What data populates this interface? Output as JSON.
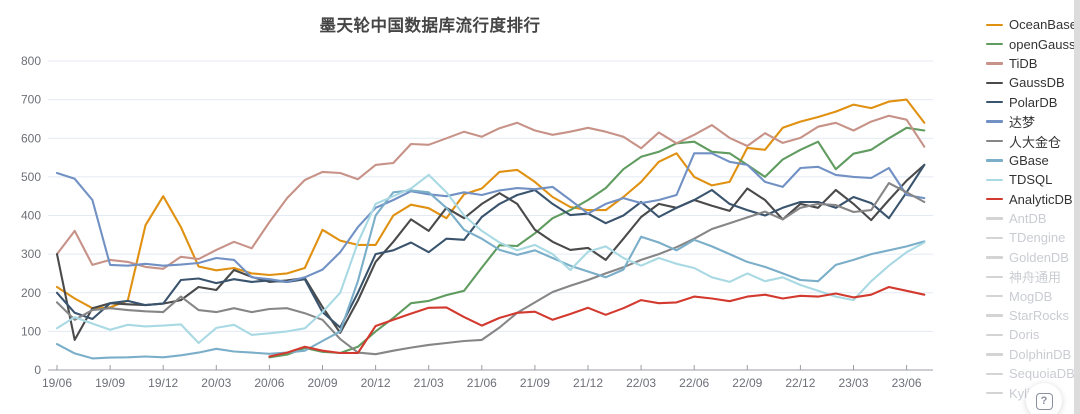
{
  "title": "墨天轮中国数据库流行度排行",
  "help": {
    "glyph": "?"
  },
  "colors": {
    "grid": "#E4EAF4",
    "axis_line": "#999CA3",
    "axis_text": "#6E7079",
    "title_text": "#454545",
    "legend_active_text": "#333333",
    "legend_inactive_text": "#C9CCD2",
    "legend_inactive_swatch": "#D4D4D4"
  },
  "legend": {
    "position": "right",
    "inactive_swatch": "#D4D4D4",
    "items": [
      {
        "label": "OceanBase",
        "color": "#E09112",
        "active": true
      },
      {
        "label": "openGauss",
        "color": "#609B60",
        "active": true
      },
      {
        "label": "TiDB",
        "color": "#C79287",
        "active": true
      },
      {
        "label": "GaussDB",
        "color": "#4A4A4A",
        "active": true
      },
      {
        "label": "PolarDB",
        "color": "#3A546E",
        "active": true
      },
      {
        "label": "达梦",
        "color": "#7191C4",
        "active": true
      },
      {
        "label": "人大金仓",
        "color": "#868686",
        "active": true
      },
      {
        "label": "GBase",
        "color": "#7AAEC9",
        "active": true
      },
      {
        "label": "TDSQL",
        "color": "#A9D9E3",
        "active": true
      },
      {
        "label": "AnalyticDB",
        "color": "#D33A2F",
        "active": true
      },
      {
        "label": "AntDB",
        "color": "#D4D4D4",
        "active": false
      },
      {
        "label": "TDengine",
        "color": "#D4D4D4",
        "active": false
      },
      {
        "label": "GoldenDB",
        "color": "#D4D4D4",
        "active": false
      },
      {
        "label": "神舟通用",
        "color": "#D4D4D4",
        "active": false
      },
      {
        "label": "MogDB",
        "color": "#D4D4D4",
        "active": false
      },
      {
        "label": "StarRocks",
        "color": "#D4D4D4",
        "active": false
      },
      {
        "label": "Doris",
        "color": "#D4D4D4",
        "active": false
      },
      {
        "label": "DolphinDB",
        "color": "#D4D4D4",
        "active": false
      },
      {
        "label": "SequoiaDB",
        "color": "#D4D4D4",
        "active": false
      },
      {
        "label": "Kylige",
        "color": "#D4D4D4",
        "active": false
      }
    ]
  },
  "chart_data": {
    "type": "line",
    "title": "墨天轮中国数据库流行度排行",
    "xlabel": "",
    "ylabel": "",
    "ylim": [
      0,
      800
    ],
    "y_ticks": [
      0,
      100,
      200,
      300,
      400,
      500,
      600,
      700,
      800
    ],
    "grid": "horizontal",
    "legend_position": "right",
    "x_tick_every": 3,
    "x_tick_labels": [
      "19/06",
      "19/09",
      "19/12",
      "20/03",
      "20/06",
      "20/09",
      "20/12",
      "21/03",
      "21/06",
      "21/09",
      "21/12",
      "22/03",
      "22/06",
      "22/09",
      "22/12",
      "23/03",
      "23/06"
    ],
    "x": [
      "19/06",
      "19/07",
      "19/08",
      "19/09",
      "19/10",
      "19/11",
      "19/12",
      "20/01",
      "20/02",
      "20/03",
      "20/04",
      "20/05",
      "20/06",
      "20/07",
      "20/08",
      "20/09",
      "20/10",
      "20/11",
      "20/12",
      "21/01",
      "21/02",
      "21/03",
      "21/04",
      "21/05",
      "21/06",
      "21/07",
      "21/08",
      "21/09",
      "21/10",
      "21/11",
      "21/12",
      "22/01",
      "22/02",
      "22/03",
      "22/04",
      "22/05",
      "22/06",
      "22/07",
      "22/08",
      "22/09",
      "22/10",
      "22/11",
      "22/12",
      "23/01",
      "23/02",
      "23/03",
      "23/04",
      "23/05",
      "23/06",
      "23/07"
    ],
    "series": [
      {
        "name": "OceanBase",
        "color": "#E09112",
        "values": [
          215,
          185,
          160,
          162,
          180,
          375,
          450,
          370,
          268,
          258,
          264,
          250,
          246,
          250,
          264,
          363,
          335,
          324,
          324,
          400,
          428,
          419,
          393,
          455,
          470,
          513,
          518,
          487,
          448,
          422,
          414,
          414,
          448,
          487,
          539,
          561,
          500,
          478,
          487,
          575,
          570,
          627,
          643,
          655,
          669,
          687,
          678,
          695,
          700,
          640
        ]
      },
      {
        "name": "openGauss",
        "color": "#609B60",
        "values": [
          null,
          null,
          null,
          null,
          null,
          null,
          null,
          null,
          null,
          null,
          null,
          null,
          33,
          40,
          57,
          47,
          44,
          60,
          100,
          135,
          173,
          179,
          194,
          205,
          265,
          323,
          321,
          354,
          393,
          414,
          440,
          471,
          520,
          552,
          565,
          587,
          591,
          565,
          561,
          531,
          500,
          545,
          570,
          591,
          520,
          560,
          570,
          600,
          627,
          620
        ]
      },
      {
        "name": "TiDB",
        "color": "#C79287",
        "values": [
          300,
          360,
          272,
          285,
          280,
          267,
          262,
          293,
          287,
          311,
          332,
          315,
          383,
          445,
          492,
          513,
          510,
          494,
          531,
          536,
          585,
          583,
          600,
          617,
          604,
          626,
          640,
          620,
          609,
          617,
          627,
          617,
          604,
          574,
          615,
          587,
          609,
          634,
          601,
          580,
          613,
          588,
          601,
          630,
          640,
          620,
          643,
          658,
          648,
          578
        ]
      },
      {
        "name": "GaussDB",
        "color": "#4A4A4A",
        "values": [
          300,
          78,
          160,
          173,
          170,
          168,
          172,
          181,
          215,
          207,
          259,
          241,
          228,
          232,
          238,
          163,
          96,
          180,
          280,
          332,
          390,
          360,
          420,
          393,
          430,
          458,
          430,
          363,
          332,
          311,
          316,
          285,
          340,
          396,
          430,
          420,
          440,
          425,
          412,
          470,
          440,
          390,
          430,
          420,
          466,
          430,
          388,
          440,
          490,
          531
        ]
      },
      {
        "name": "PolarDB",
        "color": "#3A546E",
        "values": [
          200,
          148,
          132,
          173,
          179,
          168,
          172,
          233,
          237,
          225,
          235,
          228,
          232,
          228,
          235,
          150,
          110,
          200,
          300,
          310,
          330,
          305,
          340,
          337,
          396,
          430,
          453,
          466,
          430,
          401,
          405,
          380,
          400,
          435,
          396,
          420,
          440,
          466,
          430,
          414,
          400,
          420,
          435,
          435,
          420,
          448,
          432,
          393,
          460,
          531
        ]
      },
      {
        "name": "达梦",
        "color": "#7191C4",
        "values": [
          510,
          495,
          440,
          272,
          270,
          275,
          270,
          273,
          277,
          290,
          285,
          240,
          235,
          228,
          240,
          260,
          305,
          370,
          420,
          440,
          463,
          455,
          450,
          460,
          453,
          465,
          471,
          468,
          474,
          440,
          405,
          430,
          445,
          432,
          440,
          453,
          561,
          561,
          539,
          531,
          487,
          474,
          523,
          526,
          505,
          500,
          497,
          523,
          453,
          445
        ]
      },
      {
        "name": "人大金仓",
        "color": "#868686",
        "values": [
          175,
          130,
          155,
          160,
          155,
          152,
          150,
          190,
          155,
          150,
          160,
          150,
          158,
          160,
          147,
          130,
          80,
          45,
          41,
          50,
          58,
          65,
          70,
          75,
          78,
          110,
          148,
          175,
          202,
          218,
          233,
          250,
          266,
          285,
          300,
          318,
          340,
          365,
          380,
          395,
          410,
          390,
          420,
          430,
          427,
          409,
          414,
          484,
          460,
          435
        ]
      },
      {
        "name": "GBase",
        "color": "#7AAEC9",
        "values": [
          67,
          43,
          30,
          32,
          33,
          35,
          33,
          38,
          45,
          55,
          48,
          45,
          42,
          45,
          50,
          75,
          100,
          230,
          400,
          460,
          465,
          460,
          420,
          363,
          340,
          311,
          298,
          310,
          290,
          270,
          255,
          240,
          260,
          345,
          330,
          310,
          337,
          320,
          300,
          280,
          267,
          250,
          233,
          230,
          272,
          285,
          300,
          310,
          320,
          333
        ]
      },
      {
        "name": "TDSQL",
        "color": "#A9D9E3",
        "values": [
          108,
          137,
          120,
          104,
          117,
          113,
          115,
          118,
          70,
          109,
          117,
          91,
          95,
          100,
          108,
          150,
          200,
          330,
          430,
          450,
          470,
          505,
          460,
          400,
          360,
          330,
          310,
          324,
          300,
          259,
          306,
          320,
          290,
          270,
          290,
          275,
          264,
          240,
          228,
          250,
          230,
          240,
          220,
          205,
          190,
          181,
          230,
          270,
          305,
          330
        ]
      },
      {
        "name": "AnalyticDB",
        "color": "#D33A2F",
        "values": [
          null,
          null,
          null,
          null,
          null,
          null,
          null,
          null,
          null,
          null,
          null,
          null,
          35,
          45,
          60,
          50,
          44,
          44,
          114,
          130,
          146,
          161,
          162,
          137,
          115,
          135,
          148,
          151,
          130,
          145,
          161,
          143,
          160,
          181,
          173,
          175,
          190,
          185,
          178,
          190,
          195,
          185,
          192,
          190,
          198,
          188,
          195,
          215,
          205,
          195
        ]
      }
    ],
    "hidden_series": [
      "AntDB",
      "TDengine",
      "GoldenDB",
      "神舟通用",
      "MogDB",
      "StarRocks",
      "Doris",
      "DolphinDB",
      "SequoiaDB",
      "Kylige"
    ]
  }
}
